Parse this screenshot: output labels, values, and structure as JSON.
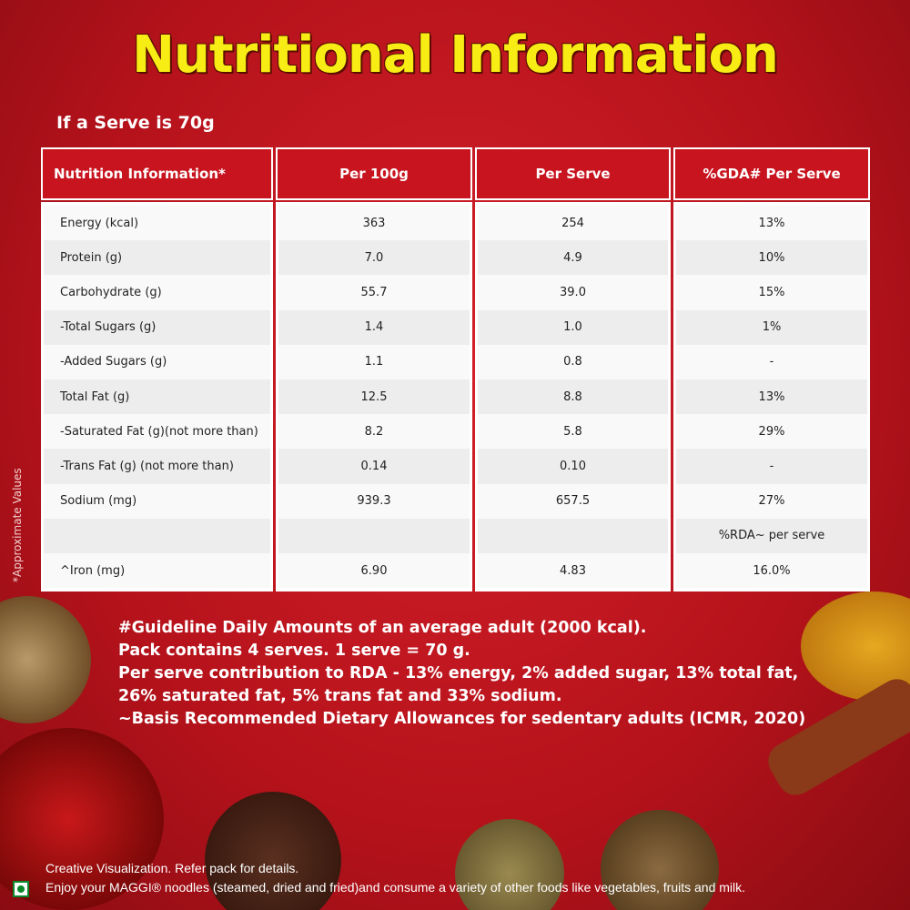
{
  "title": "Nutritional Information",
  "serve_note": "If a Serve is 70g",
  "side_note": "*Approximate Values",
  "table": {
    "headers": [
      "Nutrition Information*",
      "Per 100g",
      "Per Serve",
      "%GDA# Per Serve"
    ],
    "rows": [
      [
        "Energy (kcal)",
        "363",
        "254",
        "13%"
      ],
      [
        "Protein (g)",
        "7.0",
        "4.9",
        "10%"
      ],
      [
        "Carbohydrate (g)",
        "55.7",
        "39.0",
        "15%"
      ],
      [
        "-Total Sugars (g)",
        "1.4",
        "1.0",
        "1%"
      ],
      [
        "-Added Sugars (g)",
        "1.1",
        "0.8",
        "-"
      ],
      [
        "Total Fat (g)",
        "12.5",
        "8.8",
        "13%"
      ],
      [
        "-Saturated Fat (g)(not more than)",
        "8.2",
        "5.8",
        "29%"
      ],
      [
        "-Trans Fat (g) (not more than)",
        "0.14",
        "0.10",
        "-"
      ],
      [
        "Sodium (mg)",
        "939.3",
        "657.5",
        "27%"
      ],
      [
        null,
        null,
        null,
        "%RDA~ per serve"
      ],
      [
        "^Iron (mg)",
        "6.90",
        "4.83",
        "16.0%"
      ]
    ]
  },
  "footnotes": [
    "#Guideline Daily Amounts of an average adult  (2000 kcal).",
    "Pack contains 4 serves. 1 serve = 70 g.",
    "Per serve contribution to RDA - 13% energy, 2% added sugar, 13% total fat,",
    "26% saturated fat, 5% trans fat and 33% sodium.",
    "~Basis Recommended Dietary Allowances for sedentary adults (ICMR, 2020)"
  ],
  "disclaimer": [
    "Creative Visualization. Refer pack for details.",
    "Enjoy your MAGGI® noodles (steamed, dried and fried)and consume a variety of other foods like vegetables, fruits and milk."
  ]
}
